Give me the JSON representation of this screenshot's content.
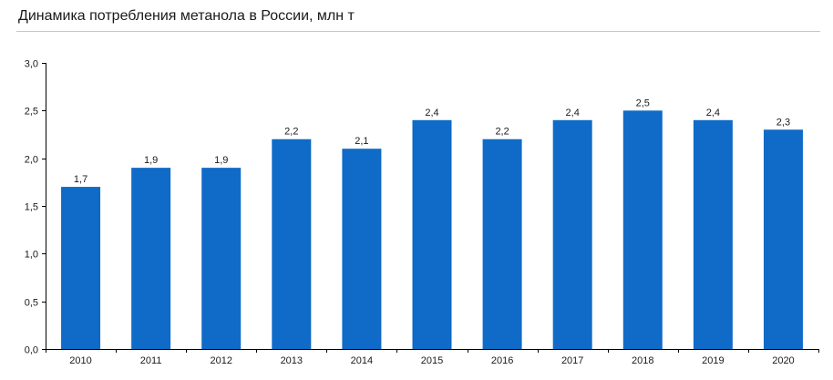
{
  "title": "Динамика потребления метанола в России, млн т",
  "colors": {
    "bar": "#0f6bc7",
    "axis": "#000000",
    "title_rule": "#9fd6ea"
  },
  "chart_data": {
    "type": "bar",
    "title": "Динамика потребления метанола в России, млн т",
    "categories": [
      "2010",
      "2011",
      "2012",
      "2013",
      "2014",
      "2015",
      "2016",
      "2017",
      "2018",
      "2019",
      "2020"
    ],
    "values": [
      1.7,
      1.9,
      1.9,
      2.2,
      2.1,
      2.4,
      2.2,
      2.4,
      2.5,
      2.4,
      2.3
    ],
    "value_labels": [
      "1,7",
      "1,9",
      "1,9",
      "2,2",
      "2,1",
      "2,4",
      "2,2",
      "2,4",
      "2,5",
      "2,4",
      "2,3"
    ],
    "ylim": [
      0,
      3
    ],
    "yticks": [
      0,
      0.5,
      1,
      1.5,
      2,
      2.5,
      3
    ],
    "ytick_labels": [
      "0,0",
      "0,5",
      "1,0",
      "1,5",
      "2,0",
      "2,5",
      "3,0"
    ],
    "xlabel": "",
    "ylabel": "",
    "grid": false,
    "legend": "none"
  }
}
